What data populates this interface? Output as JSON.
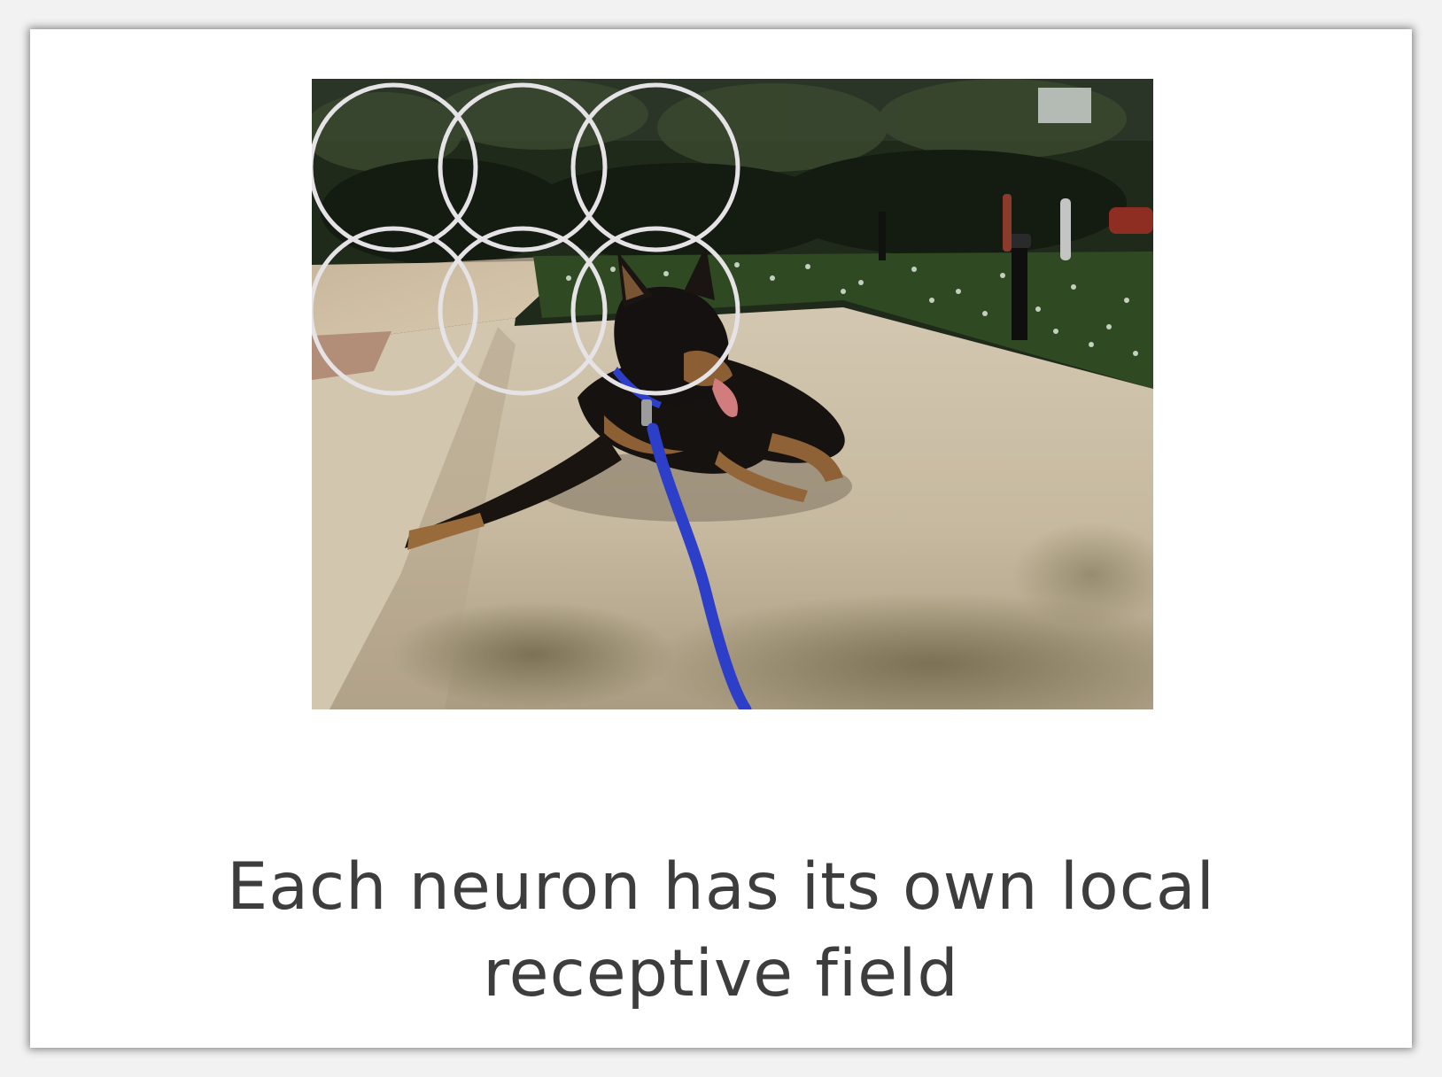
{
  "slide": {
    "caption_line1": "Each neuron has its own local",
    "caption_line2": "receptive field"
  },
  "image": {
    "subject": "dog-lying-on-concrete-slab",
    "receptive_field_circles": 6,
    "circle_color": "#e6e3e6"
  },
  "colors": {
    "text": "#3d3d3d",
    "background": "#ffffff",
    "leash": "#2d3fc8"
  }
}
